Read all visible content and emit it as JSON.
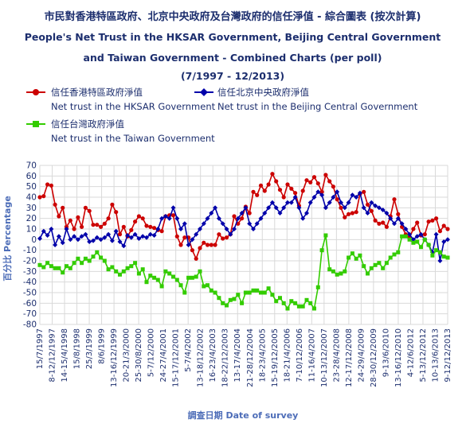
{
  "chart_data": {
    "type": "line",
    "title": "市民對香港特區政府、北京中央政府及台灣政府的信任淨值 - 綜合圖表 (按次計算)",
    "title_en_1": "People's Net Trust in the HKSAR Government, Beijing Central Government",
    "title_en_2": "and Taiwan Government - Combined Charts (per poll)",
    "period": "(7/1997 - 12/2013)",
    "xlabel": "調查日期 Date of survey",
    "ylabel": "百分比 Percentage",
    "ylim": [
      -80,
      70
    ],
    "yticks": [
      70,
      60,
      50,
      40,
      30,
      20,
      10,
      0,
      -10,
      -20,
      -30,
      -40,
      -50,
      -60,
      -70,
      -80
    ],
    "grid": true,
    "x_tick_labels": [
      "15/7/1997",
      "8-12/12/1997",
      "14-15/4/1998",
      "15/8/1998",
      "25/3/1999",
      "8/6/1999",
      "13-16/12/1999",
      "20-21/3/2000",
      "25-30/8/2000",
      "5-7/12/2000",
      "24-27/4/2001",
      "15-17/12/2001",
      "5-7/4/2002",
      "13-18/12/2002",
      "16-23/4/2003",
      "18-22/12/2003",
      "13-17/4/2004",
      "21-28/12/2004",
      "18-23/4/2005",
      "15-19/12/2005",
      "18-21/4/2006",
      "7-10/12/2006",
      "11-16/4/2007",
      "10-13/12/2007",
      "23-28/4/2008",
      "12-17/12/2008",
      "24-29/4/2009",
      "28-30/12/2009",
      "9-13/6/2010",
      "13-16/12/2010",
      "4-12/6/2012",
      "5-13/12/2012",
      "10-13/6/2013",
      "9-12/12/2013"
    ],
    "series": [
      {
        "name": "信任香港特區政府淨值",
        "name_en": "Net trust in the HKSAR Government",
        "color": "#cc0000",
        "marker": "circle",
        "values": [
          40,
          41,
          52,
          51,
          33,
          22,
          30,
          12,
          18,
          10,
          21,
          12,
          30,
          27,
          14,
          14,
          12,
          15,
          20,
          33,
          26,
          5,
          12,
          3,
          9,
          17,
          22,
          20,
          13,
          12,
          11,
          9,
          8,
          22,
          23,
          23,
          3,
          -5,
          2,
          2,
          -10,
          -18,
          -8,
          -3,
          -5,
          -5,
          -5,
          5,
          1,
          2,
          5,
          22,
          15,
          20,
          31,
          25,
          45,
          42,
          51,
          46,
          52,
          62,
          55,
          47,
          40,
          52,
          48,
          44,
          32,
          46,
          56,
          54,
          59,
          53,
          45,
          61,
          55,
          50,
          38,
          30,
          21,
          24,
          25,
          26,
          43,
          45,
          33,
          27,
          18,
          15,
          16,
          12,
          22,
          38,
          24,
          12,
          5,
          2,
          10,
          16,
          4,
          5,
          17,
          18,
          20,
          8,
          13,
          10
        ]
      },
      {
        "name": "信任北京中央政府淨值",
        "name_en": "Net trust in the Beijing Central Government",
        "color": "#0000aa",
        "marker": "diamond",
        "values": [
          1,
          8,
          4,
          10,
          -5,
          3,
          -3,
          10,
          0,
          3,
          0,
          3,
          5,
          -2,
          -1,
          2,
          0,
          2,
          5,
          -1,
          8,
          -2,
          -6,
          4,
          2,
          5,
          1,
          3,
          2,
          5,
          4,
          10,
          20,
          22,
          20,
          30,
          20,
          10,
          15,
          -5,
          0,
          5,
          10,
          15,
          20,
          25,
          30,
          20,
          15,
          10,
          5,
          10,
          20,
          25,
          30,
          15,
          10,
          15,
          20,
          25,
          30,
          35,
          30,
          25,
          30,
          35,
          35,
          40,
          30,
          20,
          25,
          35,
          40,
          45,
          42,
          30,
          35,
          40,
          45,
          35,
          30,
          35,
          42,
          40,
          44,
          30,
          25,
          35,
          32,
          30,
          28,
          25,
          20,
          15,
          20,
          15,
          10,
          5,
          0,
          3,
          5,
          0,
          -5,
          -12,
          5,
          -20,
          -2,
          0
        ]
      },
      {
        "name": "信任台灣政府淨值",
        "name_en": "Net trust in the Taiwan Government",
        "color": "#33cc00",
        "marker": "square",
        "values": [
          -24,
          -26,
          -22,
          -25,
          -27,
          -27,
          -31,
          -25,
          -27,
          -22,
          -18,
          -22,
          -18,
          -20,
          -16,
          -12,
          -17,
          -20,
          -28,
          -26,
          -30,
          -33,
          -30,
          -27,
          -25,
          -22,
          -32,
          -28,
          -40,
          -34,
          -36,
          -38,
          -44,
          -30,
          -32,
          -35,
          -38,
          -43,
          -50,
          -36,
          -36,
          -35,
          -30,
          -44,
          -43,
          -48,
          -50,
          -55,
          -60,
          -62,
          -57,
          -56,
          -52,
          -60,
          -50,
          -50,
          -48,
          -48,
          -50,
          -50,
          -46,
          -52,
          -58,
          -55,
          -60,
          -65,
          -58,
          -60,
          -63,
          -63,
          -57,
          -60,
          -65,
          -45,
          -10,
          4,
          -28,
          -30,
          -33,
          -32,
          -30,
          -17,
          -13,
          -18,
          -15,
          -25,
          -32,
          -27,
          -24,
          -22,
          -27,
          -22,
          -17,
          -14,
          -12,
          3,
          3,
          0,
          -3,
          -2,
          -7,
          0,
          -5,
          -15,
          -10,
          -12,
          -16,
          -17
        ]
      }
    ]
  },
  "legend": {
    "hk_zh": "信任香港特區政府淨值",
    "hk_en": "Net trust in the HKSAR Government",
    "bj_zh": "信任北京中央政府淨值",
    "bj_en": "Net trust in the Beijing Central Government",
    "tw_zh": "信任台灣政府淨值",
    "tw_en": "Net trust in the Taiwan Government"
  }
}
